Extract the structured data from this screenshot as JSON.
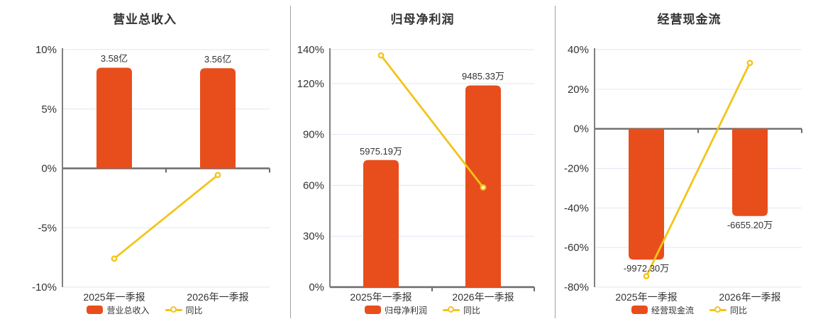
{
  "colors": {
    "bar": "#e84e1c",
    "line": "#f3c41a",
    "marker_fill": "#ffffff",
    "grid": "#e1e6f0",
    "zero_axis": "#6b6b6b",
    "y_axis": "#808080",
    "divider": "#9fa19d",
    "text": "#333333"
  },
  "chart_data": [
    {
      "type": "bar+line",
      "title": "营业总收入",
      "categories": [
        "2025年一季报",
        "2026年一季报"
      ],
      "series": [
        {
          "name": "营业总收入",
          "type": "bar",
          "unit": "亿",
          "values": [
            3.58,
            3.56
          ],
          "labels": [
            "3.58亿",
            "3.56亿"
          ],
          "plotted_pct": [
            8.48,
            8.43
          ]
        },
        {
          "name": "同比",
          "type": "line",
          "unit": "%",
          "values": [
            -7.6,
            -0.56
          ]
        }
      ],
      "y_axis": {
        "tick_labels": [
          "10%",
          "5%",
          "0%",
          "-5%",
          "-10%"
        ],
        "tick_values": [
          10,
          5,
          0,
          -5,
          -10
        ],
        "min": -10,
        "max": 10
      },
      "grid": true,
      "legend_position": "bottom"
    },
    {
      "type": "bar+line",
      "title": "归母净利润",
      "categories": [
        "2025年一季报",
        "2026年一季报"
      ],
      "series": [
        {
          "name": "归母净利润",
          "type": "bar",
          "unit": "万",
          "values": [
            5975.19,
            9485.33
          ],
          "labels": [
            "5975.19万",
            "9485.33万"
          ],
          "plotted_pct": [
            74.9,
            118.9
          ]
        },
        {
          "name": "同比",
          "type": "line",
          "unit": "%",
          "values": [
            136.6,
            58.74
          ]
        }
      ],
      "y_axis": {
        "tick_labels": [
          "140%",
          "120%",
          "90%",
          "60%",
          "30%",
          "0%"
        ],
        "tick_values": [
          140,
          120,
          90,
          60,
          30,
          0
        ],
        "min": 0,
        "max": 140
      },
      "grid": true,
      "legend_position": "bottom"
    },
    {
      "type": "bar+line",
      "title": "经营现金流",
      "categories": [
        "2025年一季报",
        "2026年一季报"
      ],
      "series": [
        {
          "name": "经营现金流",
          "type": "bar",
          "unit": "万",
          "values": [
            -9972.3,
            -6655.2
          ],
          "labels": [
            "-9972.30万",
            "-6655.20万"
          ],
          "plotted_pct": [
            -66.1,
            -44.1
          ]
        },
        {
          "name": "同比",
          "type": "line",
          "unit": "%",
          "values": [
            -74.5,
            33.27
          ]
        }
      ],
      "y_axis": {
        "tick_labels": [
          "40%",
          "20%",
          "0%",
          "-20%",
          "-40%",
          "-60%",
          "-80%"
        ],
        "tick_values": [
          40,
          20,
          0,
          -20,
          -40,
          -60,
          -80
        ],
        "min": -80,
        "max": 40
      },
      "grid": true,
      "legend_position": "bottom"
    }
  ]
}
